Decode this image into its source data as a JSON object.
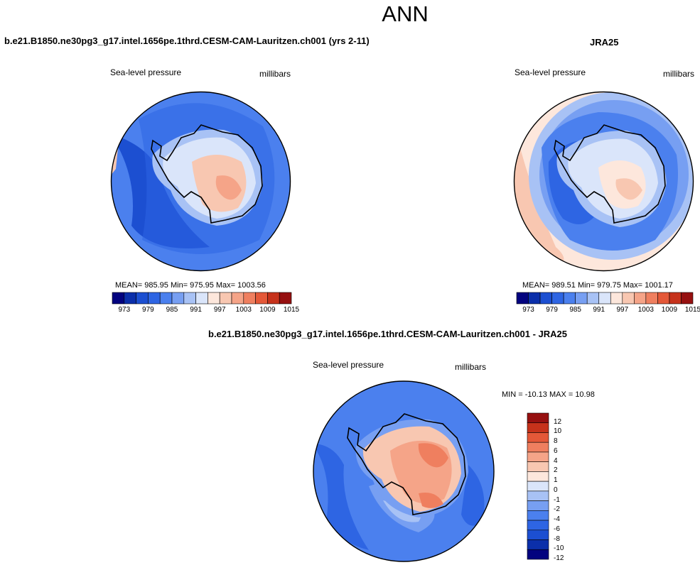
{
  "page": {
    "title": "ANN"
  },
  "colors": {
    "scale": [
      "#03037f",
      "#0b2faa",
      "#1c4fd1",
      "#2e65e3",
      "#4b80ee",
      "#779ff2",
      "#a8c2f5",
      "#dae5fa",
      "#fde7dc",
      "#f8c7b1",
      "#f5a488",
      "#ef7f5f",
      "#e45838",
      "#c6321b",
      "#961010"
    ],
    "diff_scale": [
      "#03037f",
      "#0b2faa",
      "#1c4fd1",
      "#2e65e3",
      "#4b80ee",
      "#779ff2",
      "#a8c2f5",
      "#dae5fa",
      "#fde7dc",
      "#f8c7b1",
      "#f5a488",
      "#ef7f5f",
      "#e45838",
      "#c6321b",
      "#961010"
    ],
    "land_outline": "#000000"
  },
  "chart_data": [
    {
      "id": "model",
      "type": "heatmap",
      "title": "b.e21.B1850.ne30pg3_g17.intel.1656pe.1thrd.CESM-CAM-Lauritzen.ch001 (yrs 2-11)",
      "left_label": "Sea-level pressure",
      "right_label": "millibars",
      "stats_text": "MEAN= 985.95  Min= 975.95  Max= 1003.56",
      "stats": {
        "mean": 985.95,
        "min": 975.95,
        "max": 1003.56
      },
      "colorbar_ticks": [
        "973",
        "979",
        "985",
        "991",
        "997",
        "1003",
        "1009",
        "1015"
      ]
    },
    {
      "id": "obs",
      "type": "heatmap",
      "title": "JRA25",
      "left_label": "Sea-level pressure",
      "right_label": "millibars",
      "stats_text": "MEAN= 989.51  Min= 979.75  Max= 1001.17",
      "stats": {
        "mean": 989.51,
        "min": 979.75,
        "max": 1001.17
      },
      "colorbar_ticks": [
        "973",
        "979",
        "985",
        "991",
        "997",
        "1003",
        "1009",
        "1015"
      ]
    },
    {
      "id": "diff",
      "type": "heatmap",
      "title": "b.e21.B1850.ne30pg3_g17.intel.1656pe.1thrd.CESM-CAM-Lauritzen.ch001 - JRA25",
      "left_label": "Sea-level pressure",
      "right_label": "millibars",
      "stats_text": "MIN = -10.13 MAX =  10.98",
      "stats": {
        "min": -10.13,
        "max": 10.98
      },
      "colorbar_ticks": [
        "12",
        "10",
        "8",
        "6",
        "4",
        "2",
        "1",
        "0",
        "-1",
        "-2",
        "-4",
        "-6",
        "-8",
        "-10",
        "-12"
      ]
    }
  ]
}
